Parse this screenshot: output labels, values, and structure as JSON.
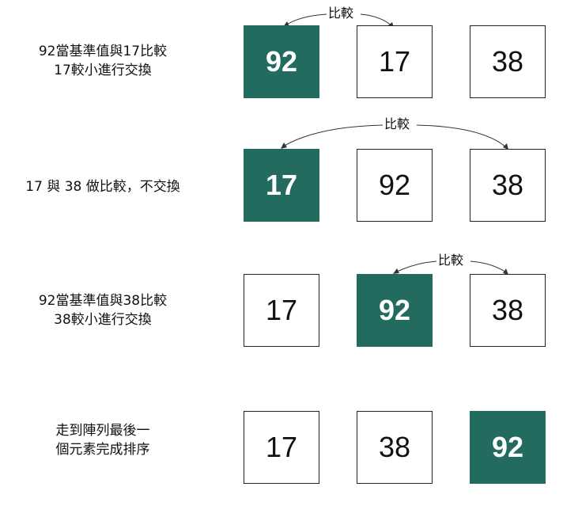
{
  "steps": [
    {
      "description": [
        "92當基準值與17比較",
        "17較小進行交換"
      ],
      "boxes": [
        "92",
        "17",
        "38"
      ],
      "highlight": 0,
      "compare_label": "比較"
    },
    {
      "description": [
        "17 與 38 做比較，不交換"
      ],
      "boxes": [
        "17",
        "92",
        "38"
      ],
      "highlight": 0,
      "compare_label": "比較"
    },
    {
      "description": [
        "92當基準值與38比較",
        "38較小進行交換"
      ],
      "boxes": [
        "17",
        "92",
        "38"
      ],
      "highlight": 1,
      "compare_label": "比較"
    },
    {
      "description": [
        "走到陣列最後一",
        "個元素完成排序"
      ],
      "boxes": [
        "17",
        "38",
        "92"
      ],
      "highlight": 2
    }
  ],
  "colors": {
    "highlight": "#236b5f"
  }
}
